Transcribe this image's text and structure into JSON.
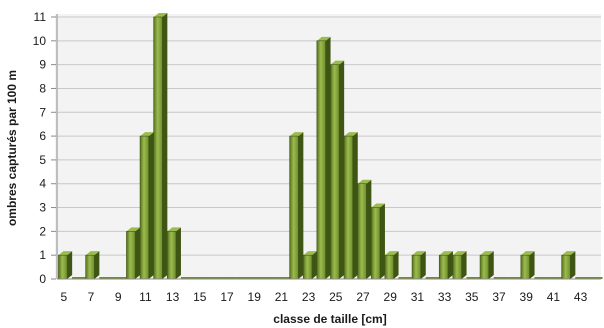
{
  "chart_data": {
    "type": "bar",
    "title": "",
    "xlabel": "classe de taille [cm]",
    "ylabel": "ombres capturés par 100 m",
    "ylim": [
      0,
      11
    ],
    "yticks": [
      0,
      1,
      2,
      3,
      4,
      5,
      6,
      7,
      8,
      9,
      10,
      11
    ],
    "grid": "horizontal",
    "categories": [
      "5",
      "6",
      "7",
      "8",
      "9",
      "10",
      "11",
      "12",
      "13",
      "14",
      "15",
      "16",
      "17",
      "18",
      "19",
      "20",
      "21",
      "22",
      "23",
      "24",
      "25",
      "26",
      "27",
      "28",
      "29",
      "30",
      "31",
      "32",
      "33",
      "34",
      "35",
      "36",
      "37",
      "38",
      "39",
      "40",
      "41",
      "42",
      "43",
      "44"
    ],
    "x_tick_labels": [
      "5",
      "7",
      "9",
      "11",
      "13",
      "15",
      "17",
      "19",
      "21",
      "23",
      "25",
      "27",
      "29",
      "31",
      "33",
      "35",
      "37",
      "39",
      "41",
      "43"
    ],
    "values": [
      1,
      0,
      1,
      0,
      0,
      2,
      6,
      11,
      2,
      0,
      0,
      0,
      0,
      0,
      0,
      0,
      0,
      6,
      1,
      10,
      9,
      6,
      4,
      3,
      1,
      0,
      1,
      0,
      1,
      1,
      0,
      1,
      0,
      0,
      1,
      0,
      0,
      1,
      0,
      0
    ],
    "colors": {
      "bar_fill": "#6e8e2c",
      "bar_highlight": "#9cbc4f",
      "bar_shadow": "#3f5514",
      "bar_side": "#56711e",
      "grid": "#c8c8c8",
      "wall": "#f3f3f3",
      "axis": "#8a8a8a"
    }
  }
}
